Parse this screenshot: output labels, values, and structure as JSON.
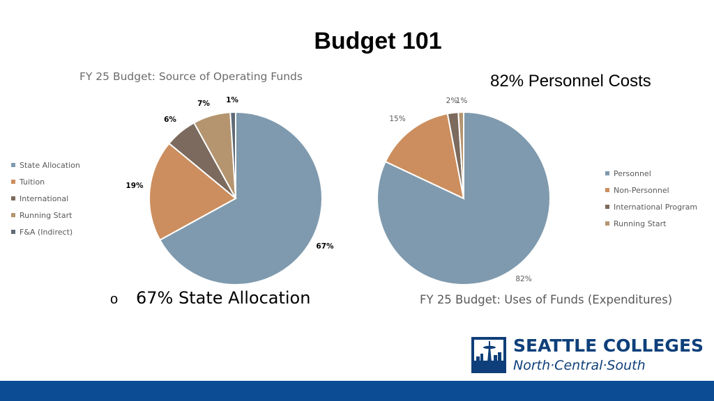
{
  "slide": {
    "title": "Budget 101",
    "bullet_marker": "o",
    "bullet_text": "67% State Allocation"
  },
  "logo": {
    "line1": "SEATTLE COLLEGES",
    "line2": "North·Central·South"
  },
  "colors": {
    "blue": "#7f9aae",
    "orange": "#cc8e5e",
    "brown": "#7b6a5d",
    "tan": "#b49570",
    "slate": "#5f6b76",
    "brand": "#0e3f7a",
    "footer": "#0b4c94"
  },
  "chart_data": [
    {
      "type": "pie",
      "title": "FY 25 Budget: Source of Operating Funds",
      "categories": [
        "State Allocation",
        "Tuition",
        "International",
        "Running Start",
        "F&A (Indirect)"
      ],
      "values": [
        67,
        19,
        6,
        7,
        1
      ],
      "data_labels": [
        "67%",
        "19%",
        "6%",
        "7%",
        "1%"
      ],
      "colors": [
        "#7f9aae",
        "#cc8e5e",
        "#7b6a5d",
        "#b49570",
        "#5f6b76"
      ],
      "legend_position": "left"
    },
    {
      "type": "pie",
      "title": "82% Personnel Costs",
      "subtitle": "FY 25 Budget:  Uses of Funds (Expenditures)",
      "categories": [
        "Personnel",
        "Non-Personnel",
        "International Program",
        "Running Start"
      ],
      "values": [
        82,
        15,
        2,
        1
      ],
      "data_labels": [
        "82%",
        "15%",
        "2%",
        "1%"
      ],
      "colors": [
        "#7f9aae",
        "#cc8e5e",
        "#7b6a5d",
        "#b49570"
      ],
      "legend_position": "right"
    }
  ]
}
